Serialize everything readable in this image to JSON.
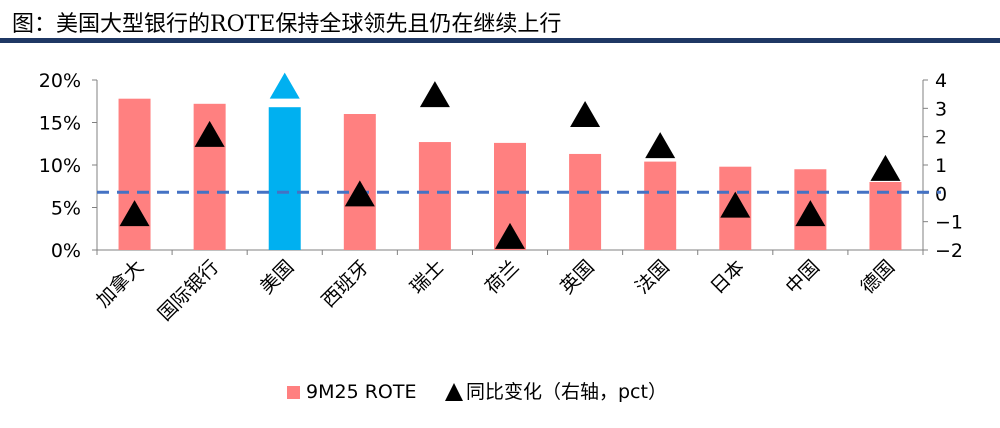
{
  "title": "图：美国大型银行的ROTE保持全球领先且仍在继续上行",
  "chart_data": {
    "type": "bar",
    "categories": [
      "加拿大",
      "国际银行",
      "美国",
      "西班牙",
      "瑞士",
      "荷兰",
      "英国",
      "法国",
      "日本",
      "中国",
      "德国"
    ],
    "series": [
      {
        "name": "9M25 ROTE",
        "type": "bar",
        "axis": "left",
        "values": [
          17.8,
          17.2,
          16.8,
          16.0,
          12.7,
          12.6,
          11.3,
          10.4,
          9.8,
          9.5,
          8.0
        ],
        "unit": "%"
      },
      {
        "name": "同比变化（右轴，pct）",
        "type": "scatter",
        "marker": "triangle",
        "axis": "right",
        "values": [
          -0.7,
          2.1,
          3.8,
          0.0,
          3.5,
          -1.5,
          2.8,
          1.7,
          -0.4,
          -0.7,
          0.9
        ]
      }
    ],
    "reference_line": {
      "axis": "left",
      "value": 6.8,
      "style": "dashed"
    },
    "highlight_category": "美国",
    "y_left": {
      "ylim": [
        0,
        20
      ],
      "ticks": [
        "0%",
        "5%",
        "10%",
        "15%",
        "20%"
      ],
      "tick_values": [
        0,
        5,
        10,
        15,
        20
      ]
    },
    "y_right": {
      "ylim": [
        -2,
        4
      ],
      "ticks": [
        "-2",
        "-1",
        "0",
        "1",
        "2",
        "3",
        "4"
      ],
      "tick_values": [
        -2,
        -1,
        0,
        1,
        2,
        3,
        4
      ]
    },
    "legend": {
      "position": "bottom",
      "entries": [
        "9M25 ROTE",
        "同比变化（右轴，pct）"
      ]
    },
    "colors": {
      "bar": "#ff8080",
      "highlight": "#00b0f0",
      "marker": "#000000",
      "reference": "#4472c4",
      "axis": "#808080"
    }
  }
}
